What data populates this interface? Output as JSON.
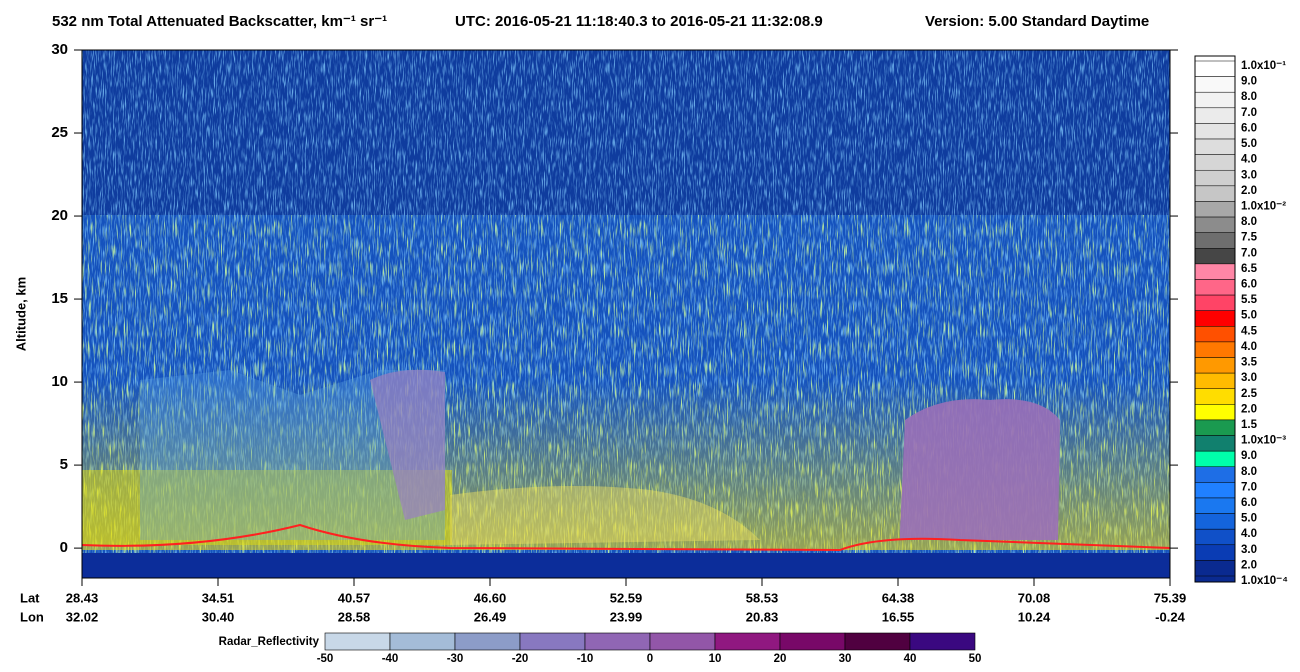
{
  "chart_data": {
    "type": "curtain",
    "title": "532 nm Total Attenuated Backscatter, km⁻¹ sr⁻¹",
    "utc": "UTC:  2016-05-21 11:18:40.3  to  2016-05-21 11:32:08.9",
    "version": "Version: 5.00  Standard  Daytime",
    "ylabel": "Altitude, km",
    "ylim": [
      -1.8,
      30
    ],
    "yticks": [
      0,
      5,
      10,
      15,
      20,
      25,
      30
    ],
    "x_rows": [
      "Lat",
      "Lon"
    ],
    "lat": [
      "28.43",
      "34.51",
      "40.57",
      "46.60",
      "52.59",
      "58.53",
      "64.38",
      "70.08",
      "75.39"
    ],
    "lon": [
      "32.02",
      "30.40",
      "28.58",
      "26.49",
      "23.99",
      "20.83",
      "16.55",
      "10.24",
      "-0.24"
    ],
    "colorbar": {
      "labels": [
        "1.0x10⁻¹",
        "9.0",
        "8.0",
        "7.0",
        "6.0",
        "5.0",
        "4.0",
        "3.0",
        "2.0",
        "1.0x10⁻²",
        "8.0",
        "7.5",
        "7.0",
        "6.5",
        "6.0",
        "5.5",
        "5.0",
        "4.5",
        "4.0",
        "3.5",
        "3.0",
        "2.5",
        "2.0",
        "1.5",
        "1.0x10⁻³",
        "9.0",
        "8.0",
        "7.0",
        "6.0",
        "5.0",
        "4.0",
        "3.0",
        "2.0",
        "1.0x10⁻⁴"
      ],
      "colors": [
        "#ffffff",
        "#f9f9f9",
        "#f2f2f2",
        "#ebebeb",
        "#e4e4e4",
        "#dddddd",
        "#d6d6d6",
        "#cfcfcf",
        "#c6c6c6",
        "#a8a8a8",
        "#8c8c8c",
        "#6e6e6e",
        "#464646",
        "#ff86a6",
        "#ff6688",
        "#ff4466",
        "#ff0000",
        "#ff5000",
        "#ff7800",
        "#ff9900",
        "#ffbb00",
        "#ffdd00",
        "#ffff00",
        "#1a9a50",
        "#11806e",
        "#00ffaa",
        "#1e6ee6",
        "#2080ff",
        "#1a78f0",
        "#1464dc",
        "#1050c8",
        "#0a3cb4",
        "#0a2a90"
      ]
    },
    "radar_colorbar": {
      "label": "Radar_Reflectivity",
      "ticks": [
        -50,
        -40,
        -30,
        -20,
        -10,
        0,
        10,
        20,
        30,
        40,
        50
      ],
      "colors": [
        "#c8d8e8",
        "#a4bcd8",
        "#8c9cc8",
        "#8878c0",
        "#9066b4",
        "#9256a8",
        "#901880",
        "#780868",
        "#500040",
        "#3a0880"
      ]
    }
  }
}
